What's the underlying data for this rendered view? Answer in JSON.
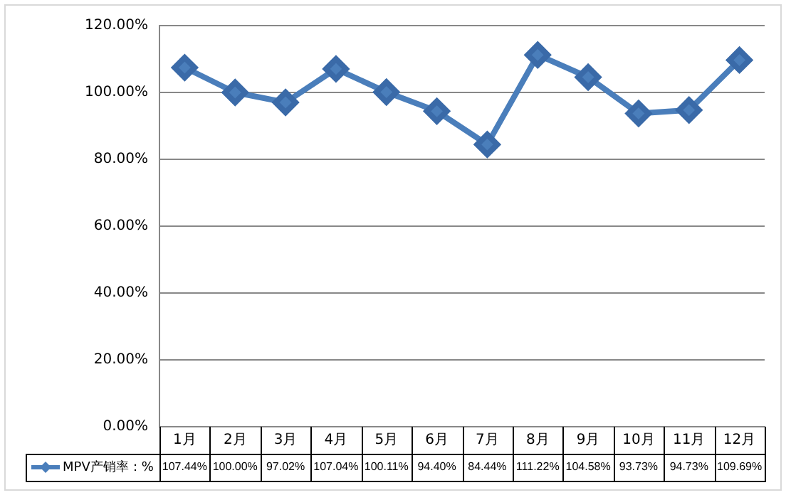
{
  "chart_data": {
    "type": "line",
    "categories": [
      "1月",
      "2月",
      "3月",
      "4月",
      "5月",
      "6月",
      "7月",
      "8月",
      "9月",
      "10月",
      "11月",
      "12月"
    ],
    "series": [
      {
        "name": "MPV产销率：%",
        "color": "#4a7ebb",
        "values": [
          107.44,
          100.0,
          97.02,
          107.04,
          100.11,
          94.4,
          84.44,
          111.22,
          104.58,
          93.73,
          94.73,
          109.69
        ],
        "value_labels": [
          "107.44%",
          "100.00%",
          "97.02%",
          "107.04%",
          "100.11%",
          "94.40%",
          "84.44%",
          "111.22%",
          "104.58%",
          "93.73%",
          "94.73%",
          "109.69%"
        ]
      }
    ],
    "ylim": [
      0,
      120
    ],
    "yticks": [
      {
        "value": 0,
        "label": "0.00%"
      },
      {
        "value": 20,
        "label": "20.00%"
      },
      {
        "value": 40,
        "label": "40.00%"
      },
      {
        "value": 60,
        "label": "60.00%"
      },
      {
        "value": 80,
        "label": "80.00%"
      },
      {
        "value": 100,
        "label": "100.00%"
      },
      {
        "value": 120,
        "label": "120.00%"
      }
    ],
    "grid": "y",
    "legend": "bottom left",
    "marker": "diamond",
    "line_style": "solid"
  }
}
